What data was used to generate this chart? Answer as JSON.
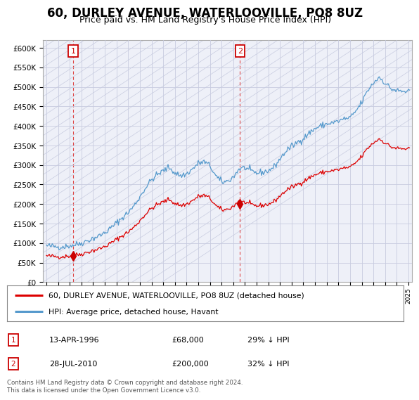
{
  "title": "60, DURLEY AVENUE, WATERLOOVILLE, PO8 8UZ",
  "subtitle": "Price paid vs. HM Land Registry's House Price Index (HPI)",
  "ylim": [
    0,
    620000
  ],
  "yticks": [
    0,
    50000,
    100000,
    150000,
    200000,
    250000,
    300000,
    350000,
    400000,
    450000,
    500000,
    550000,
    600000
  ],
  "sale1_date": "13-APR-1996",
  "sale1_price": 68000,
  "sale1_year": 1996.29,
  "sale1_label": "29% ↓ HPI",
  "sale2_date": "28-JUL-2010",
  "sale2_price": 200000,
  "sale2_year": 2010.58,
  "sale2_label": "32% ↓ HPI",
  "legend_line1": "60, DURLEY AVENUE, WATERLOOVILLE, PO8 8UZ (detached house)",
  "legend_line2": "HPI: Average price, detached house, Havant",
  "footnote": "Contains HM Land Registry data © Crown copyright and database right 2024.\nThis data is licensed under the Open Government Licence v3.0.",
  "sale_line_color": "#dd0000",
  "hpi_line_color": "#5599cc",
  "marker_color": "#cc0000",
  "vline_color": "#dd4444",
  "background_color": "#eef0f8",
  "hatch_color": "#c8cce0",
  "grid_color": "#c8cce0",
  "title_fontsize": 12,
  "subtitle_fontsize": 9,
  "axis_fontsize": 8
}
